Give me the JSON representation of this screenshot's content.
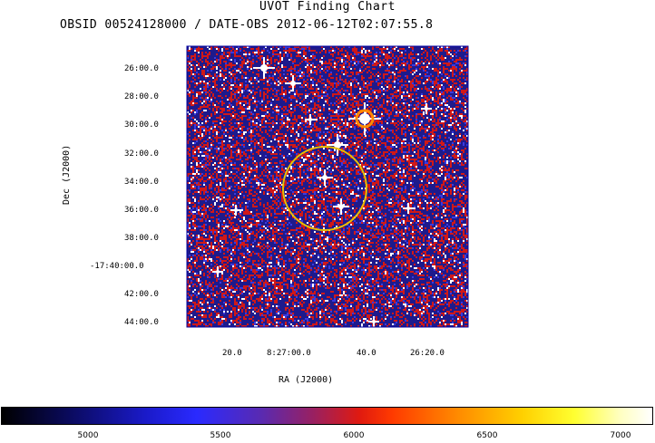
{
  "chart_data": {
    "type": "heatmap",
    "title": "UVOT Finding Chart",
    "subtitle": "OBSID 00524128000 / DATE-OBS 2012-06-12T02:07:55.8",
    "xlabel": "RA (J2000)",
    "ylabel": "Dec (J2000)",
    "x_ticks": [
      "20.0",
      "8:27:00.0",
      "40.0",
      "26:20.0"
    ],
    "y_ticks": [
      "26:00.0",
      "28:00.0",
      "30:00.0",
      "32:00.0",
      "34:00.0",
      "36:00.0",
      "38:00.0",
      "-17:40:00.0",
      "42:00.0",
      "44:00.0"
    ],
    "colorbar": {
      "ticks": [
        5000,
        5500,
        6000,
        6500,
        7000
      ],
      "range": [
        4700,
        7100
      ]
    },
    "colors": {
      "background_field": "#1e1a8c",
      "noise_red": "#d01818",
      "noise_white": "#ffffff",
      "circle": "#e8c000"
    }
  }
}
